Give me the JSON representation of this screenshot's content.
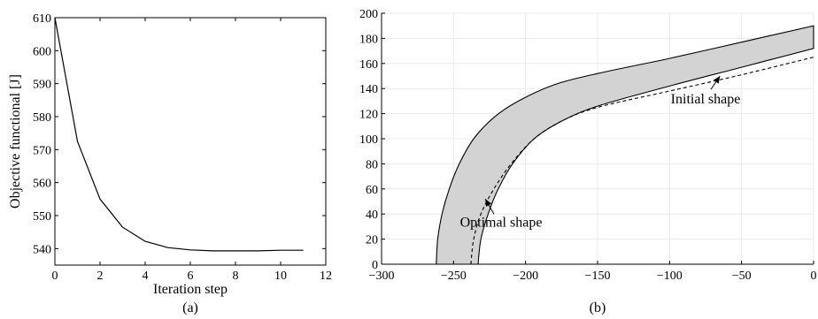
{
  "chart_data": [
    {
      "type": "line",
      "panel": "a",
      "caption": "(a)",
      "xlabel": "Iteration step",
      "ylabel": "Objective functional  [J]",
      "xlim": [
        0,
        12
      ],
      "ylim": [
        535,
        610
      ],
      "xticks": [
        0,
        2,
        4,
        6,
        8,
        10,
        12
      ],
      "yticks": [
        540,
        550,
        560,
        570,
        580,
        590,
        600,
        610
      ],
      "grid": false,
      "series": [
        {
          "x": [
            0,
            1,
            2,
            3,
            4,
            5,
            6,
            7,
            8,
            9,
            10,
            11
          ],
          "y": [
            610,
            572.5,
            555,
            546.5,
            542.2,
            540.3,
            539.6,
            539.3,
            539.3,
            539.3,
            539.5,
            539.5
          ]
        }
      ]
    },
    {
      "type": "area",
      "panel": "b",
      "caption": "(b)",
      "xlim": [
        -300,
        0
      ],
      "ylim": [
        0,
        200
      ],
      "xticks": [
        -300,
        -250,
        -200,
        -150,
        -100,
        -50,
        0
      ],
      "yticks": [
        0,
        20,
        40,
        60,
        80,
        100,
        120,
        140,
        160,
        180,
        200
      ],
      "grid": true,
      "annotations": [
        {
          "text": "Initial shape",
          "x": -75,
          "y": 128,
          "arrow_to": [
            -65,
            150
          ]
        },
        {
          "text": "Optimal shape",
          "x": -217,
          "y": 30,
          "arrow_to": [
            -228,
            52
          ]
        }
      ],
      "optimal_shape": {
        "outer": [
          [
            -262,
            0
          ],
          [
            -261,
            20
          ],
          [
            -258,
            40
          ],
          [
            -253,
            60
          ],
          [
            -246,
            80
          ],
          [
            -236,
            100
          ],
          [
            -222,
            117
          ],
          [
            -205,
            130
          ],
          [
            -180,
            143
          ],
          [
            -150,
            152
          ],
          [
            -100,
            164
          ],
          [
            -50,
            177
          ],
          [
            0,
            190
          ]
        ],
        "inner": [
          [
            -233,
            0
          ],
          [
            -231,
            20
          ],
          [
            -226,
            40
          ],
          [
            -219,
            60
          ],
          [
            -209,
            80
          ],
          [
            -194,
            100
          ],
          [
            -175,
            114
          ],
          [
            -150,
            126
          ],
          [
            -100,
            142
          ],
          [
            -50,
            157
          ],
          [
            0,
            172
          ]
        ]
      },
      "initial_shape": [
        [
          -238,
          0
        ],
        [
          -236,
          20
        ],
        [
          -231,
          40
        ],
        [
          -222,
          60
        ],
        [
          -210,
          80
        ],
        [
          -194,
          100
        ],
        [
          -175,
          114
        ],
        [
          -150,
          125
        ],
        [
          -100,
          138
        ],
        [
          -50,
          151
        ],
        [
          0,
          165
        ]
      ]
    }
  ]
}
